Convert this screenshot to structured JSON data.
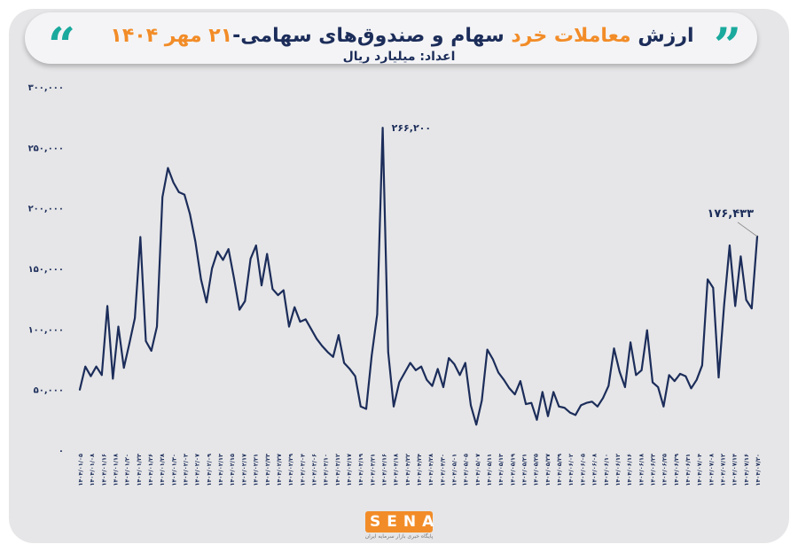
{
  "title": {
    "part1": "ارزش",
    "highlight": "معاملات خرد",
    "part2": "سهام و صندوق‌های سهامی-",
    "date": "۲۱ مهر ۱۴۰۴"
  },
  "subtitle": "اعداد: میلیارد ریال",
  "logo": {
    "name": "SENA",
    "caption": "پایگاه خبری بازار سرمایه ایران"
  },
  "colors": {
    "line": "#1c2d5a",
    "accent": "#f28c28",
    "quote": "#1aa99d",
    "background": "#e6e6e8"
  },
  "chart_data": {
    "type": "line",
    "title": "",
    "xlabel": "",
    "ylabel": "",
    "ylim": [
      0,
      300000
    ],
    "yticks": [
      0,
      50000,
      100000,
      150000,
      200000,
      250000,
      300000
    ],
    "ytick_labels": [
      "۰",
      "۵۰,۰۰۰",
      "۱۰۰,۰۰۰",
      "۱۵۰,۰۰۰",
      "۲۰۰,۰۰۰",
      "۲۵۰,۰۰۰",
      "۳۰۰,۰۰۰"
    ],
    "grid": false,
    "legend": "none",
    "xtick_labels": [
      "۱۴۰۴/۰۱/۰۵",
      "۱۴۰۴/۰۱/۰۸",
      "۱۴۰۴/۰۱/۱۶",
      "۱۴۰۴/۰۱/۱۸",
      "۱۴۰۴/۰۱/۲۰",
      "۱۴۰۴/۰۱/۲۳",
      "۱۴۰۴/۰۱/۲۶",
      "۱۴۰۴/۰۱/۲۸",
      "۱۴۰۴/۰۱/۳۰",
      "۱۴۰۴/۰۲/۰۳",
      "۱۴۰۴/۰۲/۰۷",
      "۱۴۰۴/۰۲/۰۹",
      "۱۴۰۴/۰۲/۱۳",
      "۱۴۰۴/۰۲/۱۵",
      "۱۴۰۴/۰۲/۱۷",
      "۱۴۰۴/۰۲/۲۱",
      "۱۴۰۴/۰۲/۲۳",
      "۱۴۰۴/۰۲/۲۷",
      "۱۴۰۴/۰۲/۲۹",
      "۱۴۰۴/۰۳/۰۴",
      "۱۴۰۴/۰۳/۰۶",
      "۱۴۰۴/۰۳/۱۰",
      "۱۴۰۴/۰۳/۱۲",
      "۱۴۰۴/۰۳/۱۷",
      "۱۴۰۴/۰۳/۱۹",
      "۱۴۰۴/۰۳/۲۱",
      "۱۴۰۴/۰۴/۱۶",
      "۱۴۰۴/۰۴/۱۸",
      "۱۴۰۴/۰۴/۲۲",
      "۱۴۰۴/۰۴/۲۴",
      "۱۴۰۴/۰۴/۲۸",
      "۱۴۰۴/۰۴/۳۰",
      "۱۴۰۴/۰۵/۰۱",
      "۱۴۰۴/۰۵/۰۵",
      "۱۴۰۴/۰۵/۰۷",
      "۱۴۰۴/۰۵/۱۱",
      "۱۴۰۴/۰۵/۱۳",
      "۱۴۰۴/۰۵/۱۹",
      "۱۴۰۴/۰۵/۲۱",
      "۱۴۰۴/۰۵/۲۵",
      "۱۴۰۴/۰۵/۲۷",
      "۱۴۰۴/۰۵/۲۹",
      "۱۴۰۴/۰۶/۰۲",
      "۱۴۰۴/۰۶/۰۵",
      "۱۴۰۴/۰۶/۰۸",
      "۱۴۰۴/۰۶/۱۰",
      "۱۴۰۴/۰۶/۱۲",
      "۱۴۰۴/۰۶/۱۶",
      "۱۴۰۴/۰۶/۱۸",
      "۱۴۰۴/۰۶/۲۳",
      "۱۴۰۴/۰۶/۲۵",
      "۱۴۰۴/۰۶/۲۹",
      "۱۴۰۴/۰۶/۳۱",
      "۱۴۰۴/۰۷/۰۴",
      "۱۴۰۴/۰۷/۰۸",
      "۱۴۰۴/۰۷/۱۲",
      "۱۴۰۴/۰۷/۱۴",
      "۱۴۰۴/۰۷/۱۶",
      "۱۴۰۴/۰۷/۲۰"
    ],
    "annotations": [
      {
        "label": "۲۶۶,۲۰۰",
        "value": 266200
      },
      {
        "label": "۱۷۶,۴۳۳",
        "value": 176433
      }
    ],
    "series": [
      {
        "values": [
          50000,
          69000,
          61000,
          69000,
          62000,
          119000,
          59000,
          102000,
          68000,
          88000,
          109000,
          176000,
          90000,
          82000,
          102000,
          209000,
          233000,
          221000,
          213000,
          211000,
          195000,
          172000,
          141000,
          122000,
          150000,
          164000,
          157000,
          166000,
          142000,
          116000,
          123000,
          158000,
          169000,
          136000,
          162000,
          133000,
          128000,
          132000,
          102000,
          118000,
          106000,
          108000,
          100000,
          92000,
          86000,
          81000,
          77000,
          95000,
          72000,
          67000,
          61000,
          36000,
          34000,
          78000,
          112000,
          266200,
          81000,
          36000,
          56000,
          64000,
          72000,
          66000,
          69000,
          58000,
          53000,
          67000,
          52000,
          76000,
          71000,
          62000,
          72000,
          37000,
          21000,
          41000,
          83000,
          75000,
          64000,
          58000,
          51000,
          46000,
          57000,
          38000,
          39000,
          25000,
          48000,
          28000,
          48000,
          36000,
          35000,
          31000,
          29000,
          37000,
          39000,
          40000,
          36000,
          43000,
          53000,
          84000,
          65000,
          52000,
          89000,
          62000,
          66000,
          99000,
          56000,
          52000,
          36000,
          62000,
          57000,
          63000,
          61000,
          51000,
          58000,
          70000,
          141000,
          134000,
          60000,
          120000,
          169000,
          119000,
          160000,
          124000,
          117000,
          176433
        ]
      }
    ]
  }
}
